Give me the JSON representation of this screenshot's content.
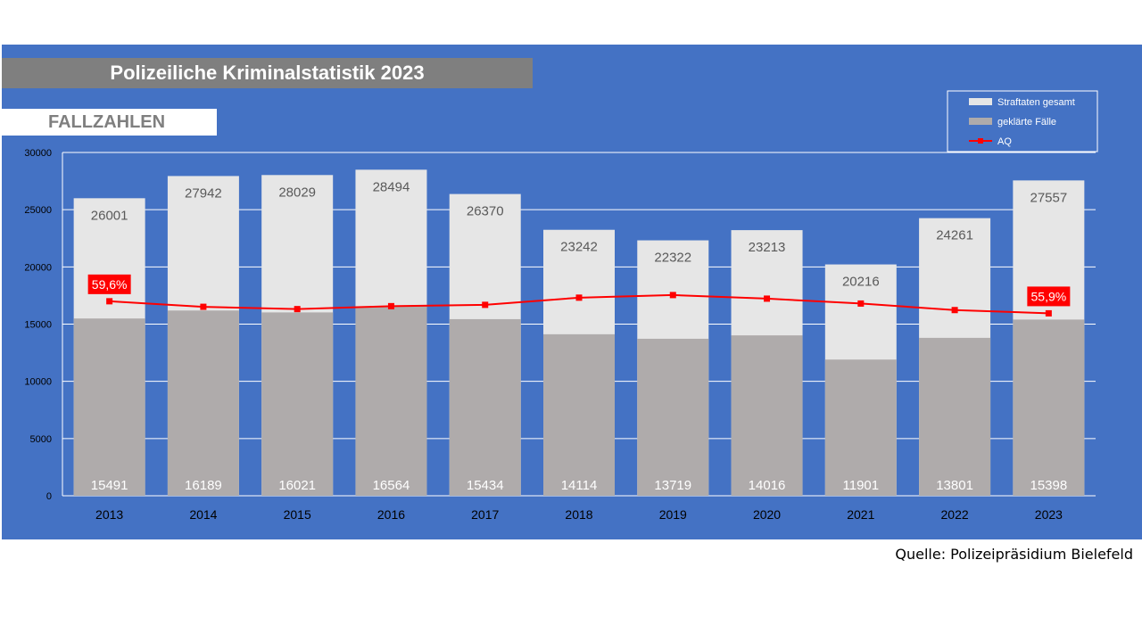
{
  "header": {
    "title": "Polizeiliche Kriminalstatistik 2023",
    "section": "FALLZAHLEN"
  },
  "footer": {
    "source": "Quelle: Polizeipräsidium Bielefeld"
  },
  "colors": {
    "background": "#4472c4",
    "total_bar": "#e6e6e6",
    "solved_bar": "#afabab",
    "line": "#ff0000",
    "gridline": "#ffffff"
  },
  "chart_data": {
    "type": "bar",
    "categories": [
      "2013",
      "2014",
      "2015",
      "2016",
      "2017",
      "2018",
      "2019",
      "2020",
      "2021",
      "2022",
      "2023"
    ],
    "ylim": [
      0,
      30000
    ],
    "yticks": [
      0,
      5000,
      10000,
      15000,
      20000,
      25000,
      30000
    ],
    "grid": true,
    "legend_position": "top-right",
    "series": [
      {
        "name": "Straftaten gesamt",
        "type": "bar",
        "values": [
          26001,
          27942,
          28029,
          28494,
          26370,
          23242,
          22322,
          23213,
          20216,
          24261,
          27557
        ]
      },
      {
        "name": "geklärte Fälle",
        "type": "bar",
        "values": [
          15491,
          16189,
          16021,
          16564,
          15434,
          14114,
          13719,
          14016,
          11901,
          13801,
          15398
        ]
      },
      {
        "name": "AQ",
        "type": "line",
        "values": [
          59.6,
          57.9,
          57.2,
          58.1,
          58.5,
          60.7,
          61.5,
          60.4,
          58.9,
          56.9,
          55.9
        ]
      }
    ],
    "line_labels": [
      {
        "index": 0,
        "text": "59,6%"
      },
      {
        "index": 10,
        "text": "55,9%"
      }
    ]
  }
}
